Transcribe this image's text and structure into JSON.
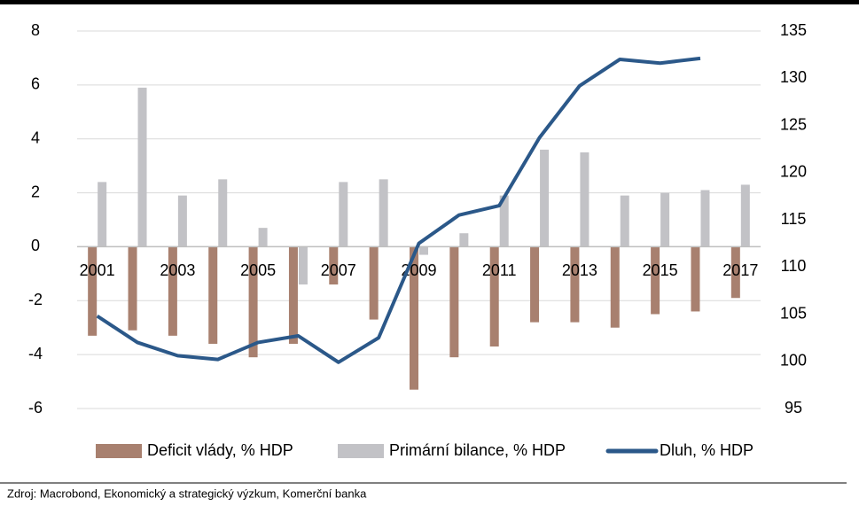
{
  "chart_data": {
    "type": "bar",
    "categories": [
      "2001",
      null,
      "2003",
      null,
      "2005",
      null,
      "2007",
      null,
      "2009",
      null,
      "2011",
      null,
      "2013",
      null,
      "2015",
      null,
      "2017"
    ],
    "series": [
      {
        "name": "Deficit vlády, % HDP",
        "color": "#a8806f",
        "values": [
          -3.3,
          -3.1,
          -3.3,
          -3.6,
          -4.1,
          -3.6,
          -1.4,
          -2.7,
          -5.3,
          -4.1,
          -3.7,
          -2.8,
          -2.8,
          -3.0,
          -2.5,
          -2.4,
          -1.9
        ]
      },
      {
        "name": "Primární bilance, % HDP",
        "color": "#c2c2c6",
        "values": [
          2.4,
          5.9,
          1.9,
          2.5,
          0.7,
          -1.4,
          2.4,
          2.5,
          -0.3,
          0.5,
          1.9,
          3.6,
          3.5,
          1.9,
          2.0,
          2.1,
          2.3
        ]
      },
      {
        "name": "Dluh, % HDP",
        "color": "#2b5889",
        "type": "line",
        "axis": "y2",
        "values": [
          104.8,
          102.0,
          100.6,
          100.2,
          102.0,
          102.7,
          99.9,
          102.5,
          112.5,
          115.5,
          116.5,
          123.7,
          129.2,
          132.0,
          131.6,
          132.1,
          null
        ]
      }
    ],
    "ylim": [
      -6,
      8
    ],
    "yticks": [
      -6,
      -4,
      -2,
      0,
      2,
      4,
      6,
      8
    ],
    "y2lim": [
      95,
      135
    ],
    "y2ticks": [
      95,
      100,
      105,
      110,
      115,
      120,
      125,
      130,
      135
    ],
    "grid": true,
    "legend": "bottom",
    "source": "Zdroj: Macrobond, Ekonomický a strategický výzkum, Komerční banka"
  }
}
